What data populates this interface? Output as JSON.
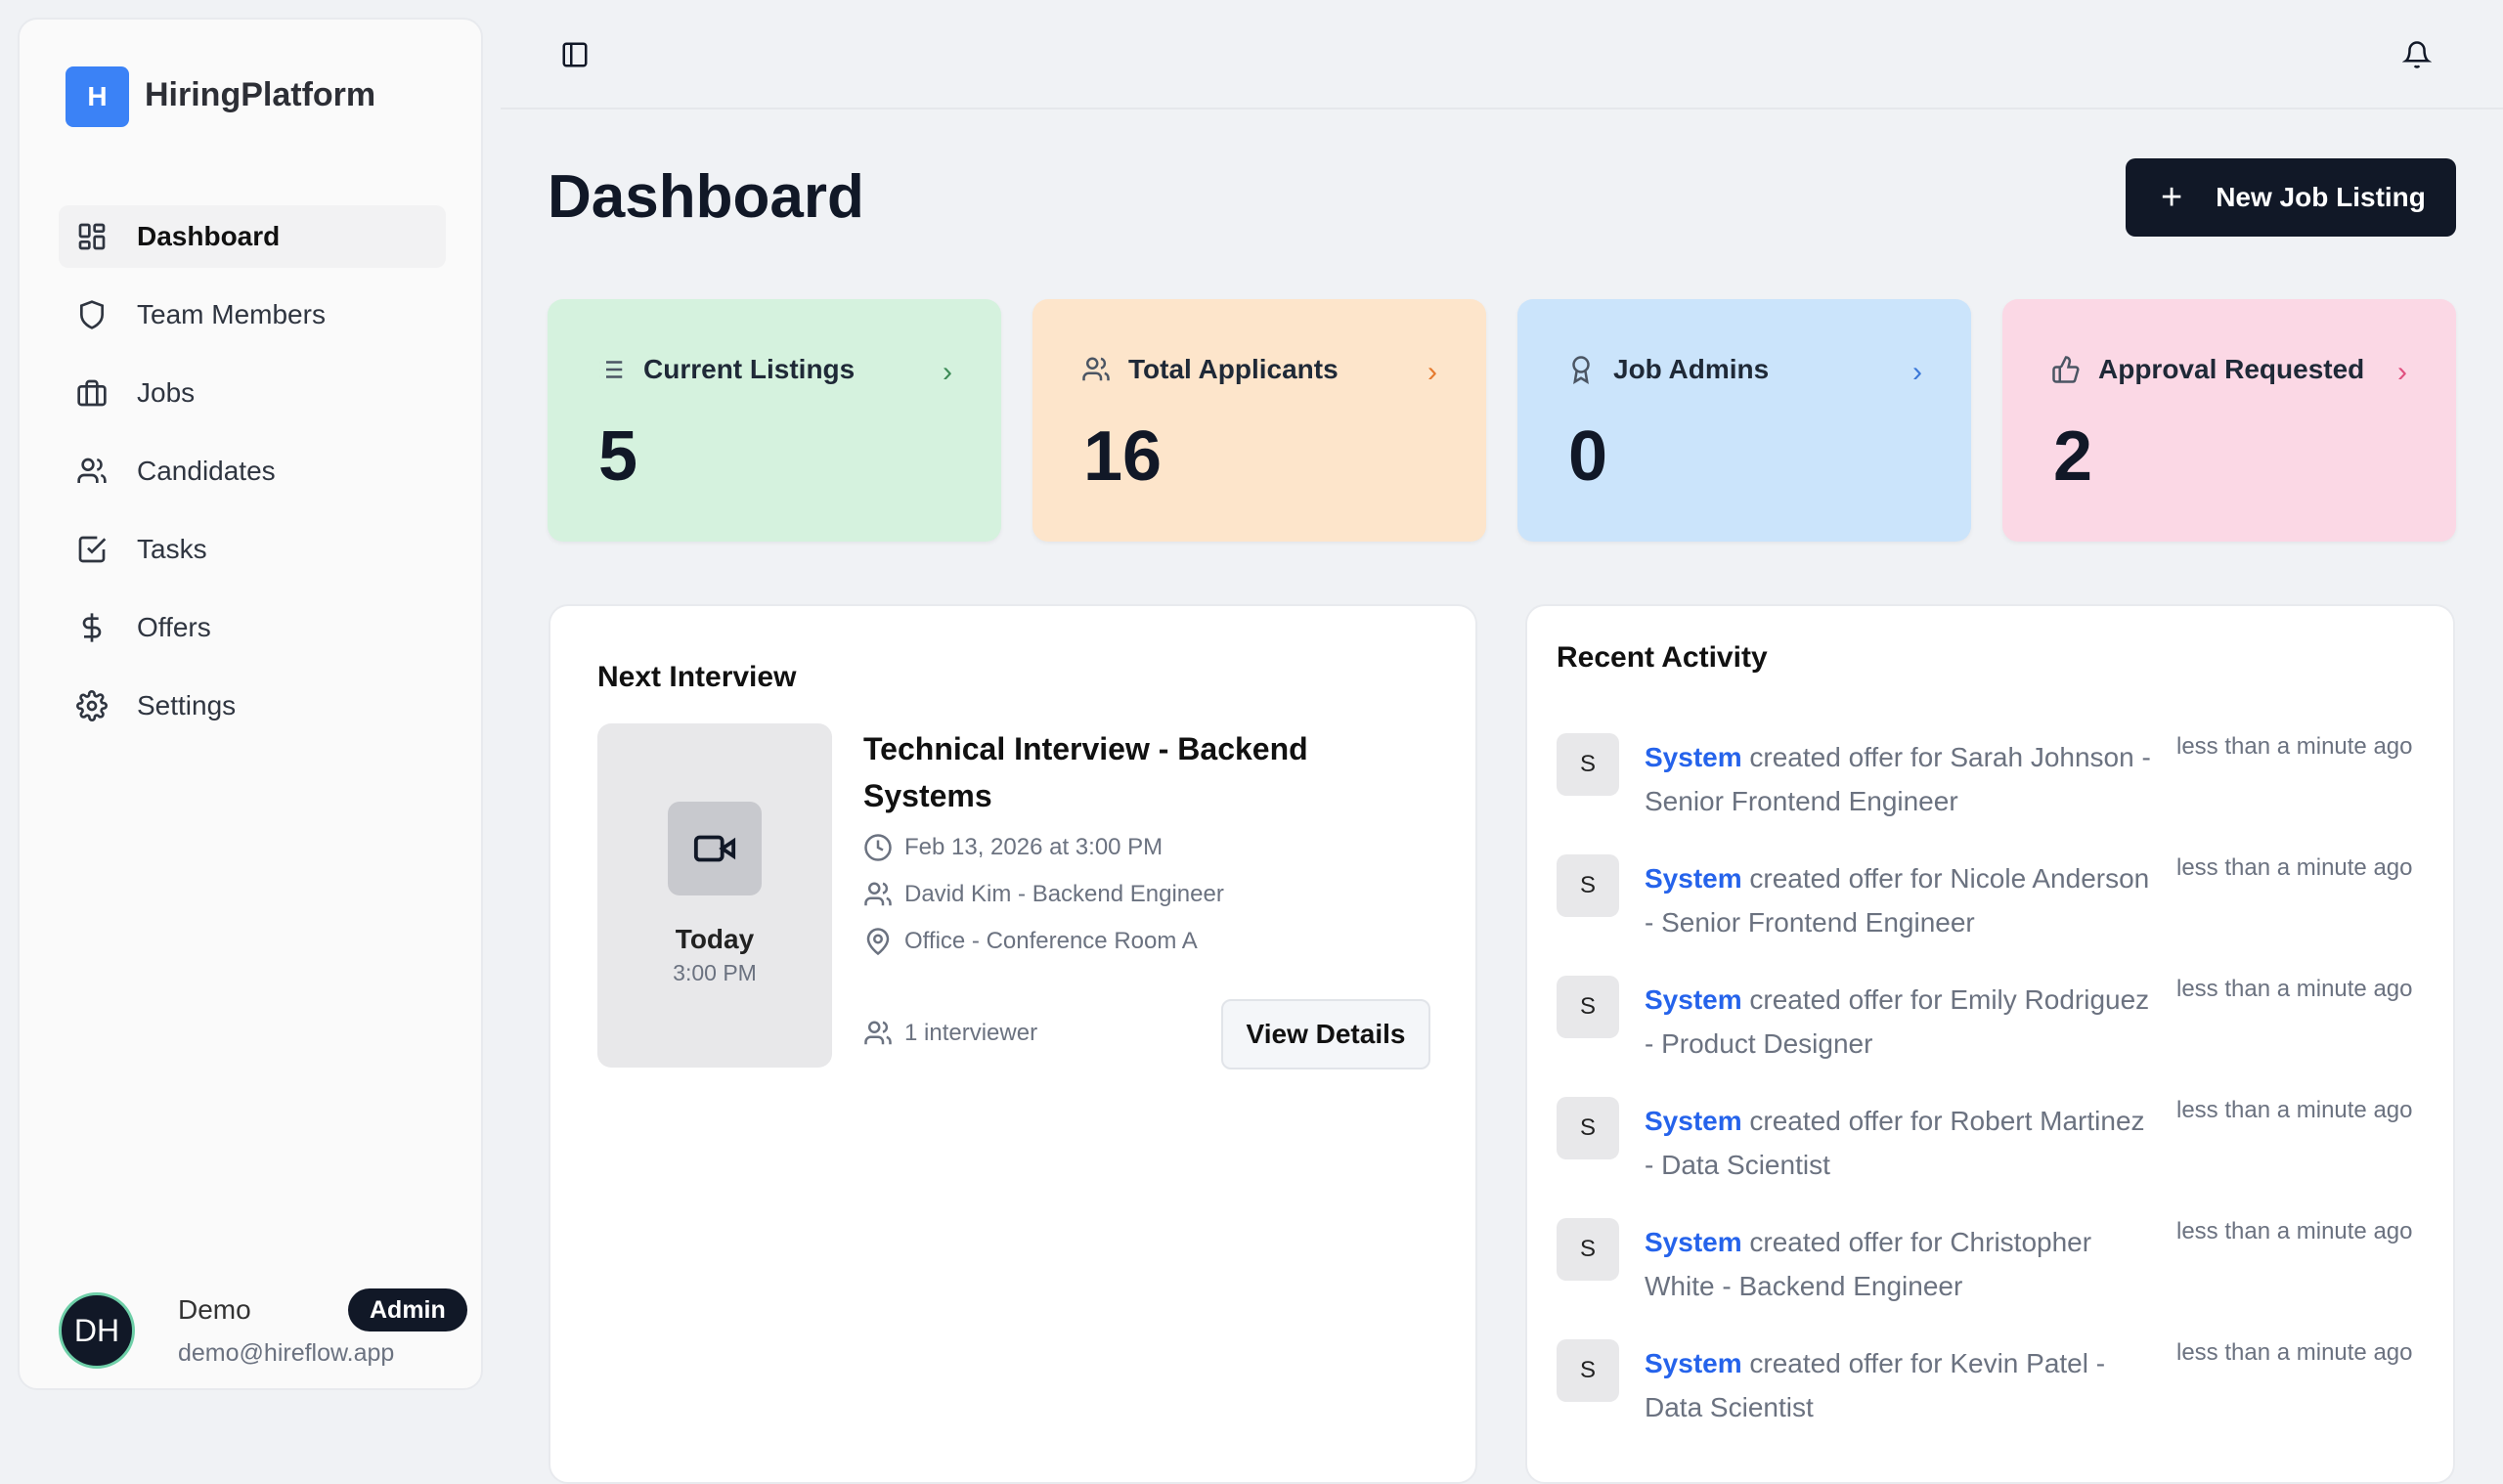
{
  "brand": {
    "logo_letter": "H",
    "name": "HiringPlatform",
    "color": "#3b82f6"
  },
  "sidebar": {
    "items": [
      {
        "label": "Dashboard",
        "icon": "layout-dashboard-icon",
        "active": true
      },
      {
        "label": "Team Members",
        "icon": "shield-icon"
      },
      {
        "label": "Jobs",
        "icon": "briefcase-icon"
      },
      {
        "label": "Candidates",
        "icon": "users-icon"
      },
      {
        "label": "Tasks",
        "icon": "check-square-icon"
      },
      {
        "label": "Offers",
        "icon": "dollar-sign-icon"
      },
      {
        "label": "Settings",
        "icon": "gear-icon"
      }
    ]
  },
  "user": {
    "initials": "DH",
    "name": "Demo",
    "email": "demo@hireflow.app",
    "role": "Admin"
  },
  "header": {
    "title": "Dashboard",
    "new_button": "New Job Listing"
  },
  "stats": [
    {
      "label": "Current Listings",
      "value": "5",
      "bg": "#d5f2de",
      "accent": "#3d8b57",
      "icon": "list-icon"
    },
    {
      "label": "Total Applicants",
      "value": "16",
      "bg": "#fde5cb",
      "accent": "#e57a2e",
      "icon": "users-icon"
    },
    {
      "label": "Job Admins",
      "value": "0",
      "bg": "#cbe4fb",
      "accent": "#3b78d8",
      "icon": "award-icon"
    },
    {
      "label": "Approval Requested",
      "value": "2",
      "bg": "#fbd8e5",
      "accent": "#e0507f",
      "icon": "thumbs-up-icon"
    }
  ],
  "next_interview": {
    "heading": "Next Interview",
    "day": "Today",
    "time": "3:00 PM",
    "title": "Technical Interview - Backend Systems",
    "datetime": "Feb 13, 2026 at 3:00 PM",
    "candidate": "David Kim - Backend Engineer",
    "location": "Office - Conference Room A",
    "interviewers": "1 interviewer",
    "view_button": "View Details"
  },
  "recent_activity": {
    "heading": "Recent Activity",
    "items": [
      {
        "avatar": "S",
        "actor": "System",
        "text": "created offer for Sarah Johnson - Senior Frontend Engineer",
        "time": "less than a minute ago"
      },
      {
        "avatar": "S",
        "actor": "System",
        "text": "created offer for Nicole Anderson - Senior Frontend Engineer",
        "time": "less than a minute ago"
      },
      {
        "avatar": "S",
        "actor": "System",
        "text": "created offer for Emily Rodriguez - Product Designer",
        "time": "less than a minute ago"
      },
      {
        "avatar": "S",
        "actor": "System",
        "text": "created offer for Robert Martinez - Data Scientist",
        "time": "less than a minute ago"
      },
      {
        "avatar": "S",
        "actor": "System",
        "text": "created offer for Christopher White - Backend Engineer",
        "time": "less than a minute ago"
      },
      {
        "avatar": "S",
        "actor": "System",
        "text": "created offer for Kevin Patel - Data Scientist",
        "time": "less than a minute ago"
      }
    ]
  }
}
